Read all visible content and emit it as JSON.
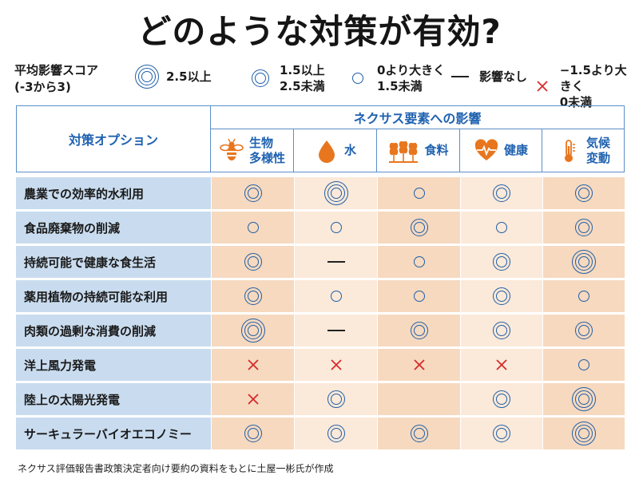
{
  "title": "どのような対策が有効?",
  "legend": {
    "label_line1": "平均影響スコア",
    "label_line2": "(-3から3)",
    "items": [
      {
        "symbol": "triple",
        "line1": "2.5以上",
        "line2": ""
      },
      {
        "symbol": "double",
        "line1": "1.5以上",
        "line2": "2.5未満"
      },
      {
        "symbol": "single",
        "line1": "0より大きく",
        "line2": "1.5未満"
      },
      {
        "symbol": "dash",
        "line1": "影響なし",
        "line2": ""
      },
      {
        "symbol": "cross",
        "line1": "−1.5より大きく",
        "line2": "0未満"
      }
    ]
  },
  "table": {
    "option_header": "対策オプション",
    "group_header": "ネクサス要素への影響",
    "columns": [
      {
        "line1": "生物",
        "line2": "多様性",
        "icon": "bee-icon"
      },
      {
        "line1": "水",
        "line2": "",
        "icon": "water-drop-icon"
      },
      {
        "line1": "食料",
        "line2": "",
        "icon": "wheat-icon"
      },
      {
        "line1": "健康",
        "line2": "",
        "icon": "heart-pulse-icon"
      },
      {
        "line1": "気候",
        "line2": "変動",
        "icon": "thermometer-icon"
      }
    ],
    "rows": [
      {
        "label": "農業での効率的水利用",
        "cells": [
          "double",
          "triple",
          "single",
          "double",
          "double"
        ]
      },
      {
        "label": "食品廃棄物の削減",
        "cells": [
          "single",
          "single",
          "double",
          "single",
          "double"
        ]
      },
      {
        "label": "持続可能で健康な食生活",
        "cells": [
          "double",
          "dash",
          "single",
          "double",
          "triple"
        ]
      },
      {
        "label": "薬用植物の持続可能な利用",
        "cells": [
          "double",
          "single",
          "single",
          "double",
          "single"
        ]
      },
      {
        "label": "肉類の過剰な消費の削減",
        "cells": [
          "triple",
          "dash",
          "double",
          "double",
          "double"
        ]
      },
      {
        "label": "洋上風力発電",
        "cells": [
          "cross",
          "cross",
          "cross",
          "cross",
          "single"
        ]
      },
      {
        "label": "陸上の太陽光発電",
        "cells": [
          "cross",
          "double",
          "",
          "double",
          "triple"
        ]
      },
      {
        "label": "サーキュラーバイオエコノミー",
        "cells": [
          "double",
          "double",
          "double",
          "double",
          "triple"
        ]
      }
    ]
  },
  "colors": {
    "ring": "#1f5fa8",
    "cross": "#d62b2b",
    "icon": "#e8761e",
    "header_text": "#1f62b0"
  },
  "footnote": "ネクサス評価報告書政策決定者向け要約の資料をもとに土屋一彬氏が作成"
}
